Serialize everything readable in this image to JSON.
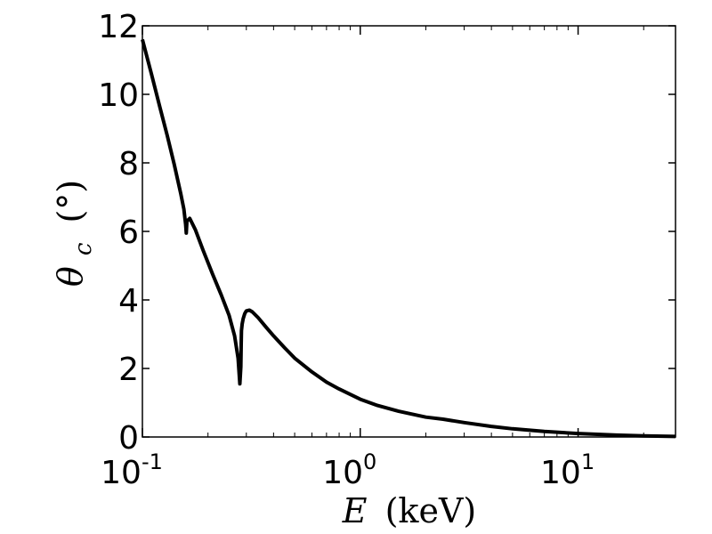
{
  "chart_data": {
    "type": "line",
    "xscale": "log",
    "xlim": [
      0.1,
      28
    ],
    "ylim": [
      0,
      12
    ],
    "grid": false,
    "xlabel": {
      "symbol": "E",
      "unit": "(keV)"
    },
    "ylabel": {
      "symbol": "θ",
      "subscript": "c",
      "unit": "(°)"
    },
    "xticks": [
      {
        "value": 0.1,
        "base": "10",
        "exponent": "-1"
      },
      {
        "value": 1,
        "base": "10",
        "exponent": "0"
      },
      {
        "value": 10,
        "base": "10",
        "exponent": "1"
      }
    ],
    "yticks": [
      {
        "value": 0,
        "label": "0"
      },
      {
        "value": 2,
        "label": "2"
      },
      {
        "value": 4,
        "label": "4"
      },
      {
        "value": 6,
        "label": "6"
      },
      {
        "value": 8,
        "label": "8"
      },
      {
        "value": 10,
        "label": "10"
      },
      {
        "value": 12,
        "label": "12"
      }
    ],
    "series": [
      {
        "color": "#000000",
        "x": [
          0.1,
          0.11,
          0.12,
          0.13,
          0.14,
          0.15,
          0.155,
          0.158,
          0.159,
          0.16,
          0.165,
          0.175,
          0.19,
          0.21,
          0.23,
          0.25,
          0.265,
          0.275,
          0.28,
          0.283,
          0.284,
          0.285,
          0.287,
          0.29,
          0.295,
          0.3,
          0.31,
          0.32,
          0.34,
          0.37,
          0.4,
          0.45,
          0.5,
          0.6,
          0.7,
          0.8,
          1.0,
          1.2,
          1.5,
          2.0,
          2.4,
          3.0,
          4.0,
          5.0,
          7.0,
          10.0,
          15.0,
          20.0,
          28.0
        ],
        "y": [
          11.6,
          10.6,
          9.65,
          8.8,
          7.95,
          7.1,
          6.65,
          6.2,
          5.95,
          6.3,
          6.38,
          6.05,
          5.45,
          4.75,
          4.15,
          3.55,
          2.95,
          2.3,
          1.55,
          2.05,
          2.7,
          3.1,
          3.3,
          3.45,
          3.6,
          3.68,
          3.7,
          3.65,
          3.48,
          3.2,
          2.95,
          2.6,
          2.3,
          1.9,
          1.6,
          1.4,
          1.1,
          0.92,
          0.75,
          0.58,
          0.52,
          0.42,
          0.31,
          0.24,
          0.16,
          0.1,
          0.055,
          0.03,
          0.015
        ]
      }
    ]
  }
}
